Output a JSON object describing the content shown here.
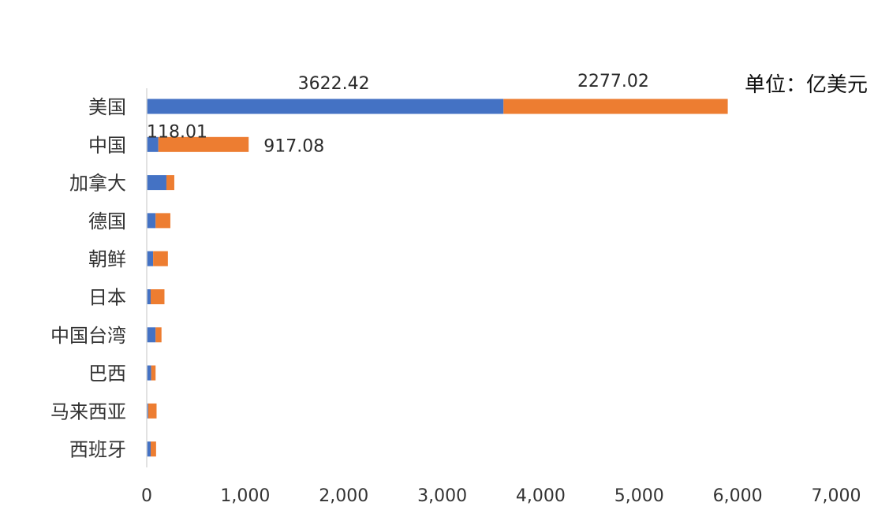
{
  "chart_data": {
    "type": "bar",
    "orientation": "horizontal",
    "stacked": true,
    "unit_label": "单位：亿美元",
    "categories": [
      "美国",
      "中国",
      "加拿大",
      "德国",
      "朝鲜",
      "日本",
      "中国台湾",
      "巴西",
      "马来西亚",
      "西班牙"
    ],
    "series": [
      {
        "color": "#4472C4",
        "values": [
          3622.42,
          118.01,
          200,
          90,
          65,
          40,
          90,
          45,
          15,
          40
        ],
        "data_labels": [
          "3622.42",
          "118.01",
          null,
          null,
          null,
          null,
          null,
          null,
          null,
          null
        ]
      },
      {
        "color": "#ED7D31",
        "values": [
          2277.02,
          917.08,
          80,
          150,
          150,
          140,
          60,
          45,
          85,
          55
        ],
        "data_labels": [
          "2277.02",
          "917.08",
          null,
          null,
          null,
          null,
          null,
          null,
          null,
          null
        ]
      }
    ],
    "x_ticks": [
      "0",
      "1,000",
      "2,000",
      "3,000",
      "4,000",
      "5,000",
      "6,000",
      "7,000"
    ],
    "xlim": [
      0,
      7000
    ],
    "grid": false,
    "legend": "none"
  }
}
